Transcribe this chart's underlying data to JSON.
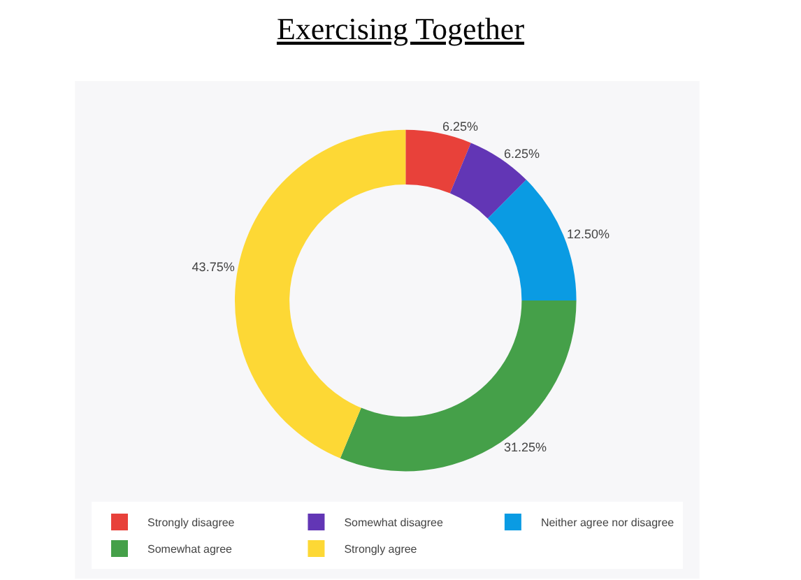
{
  "chart_data": {
    "type": "donut",
    "title": "Exercising Together",
    "categories": [
      "Strongly disagree",
      "Somewhat disagree",
      "Neither agree nor disagree",
      "Somewhat agree",
      "Strongly agree"
    ],
    "values": [
      6.25,
      6.25,
      12.5,
      31.25,
      43.75
    ],
    "value_labels": [
      "6.25%",
      "6.25%",
      "12.50%",
      "31.25%",
      "43.75%"
    ],
    "colors": [
      "#e8413a",
      "#6236b5",
      "#0a9be3",
      "#45a049",
      "#fdd835"
    ],
    "legend": "bottom"
  }
}
